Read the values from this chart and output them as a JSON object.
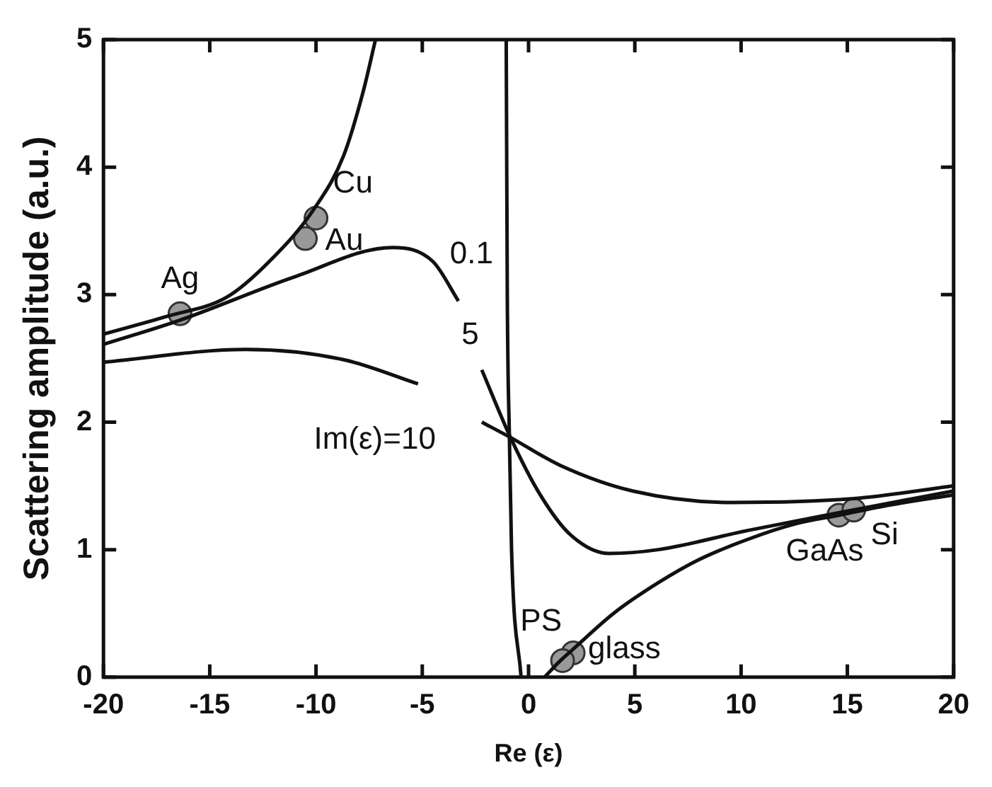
{
  "chart_data": {
    "type": "line",
    "xlabel": "Re (ε)",
    "ylabel": "Scattering amplitude (a.u.)",
    "xlim": [
      -20,
      20
    ],
    "xticks": [
      -20,
      -15,
      -10,
      -5,
      0,
      5,
      10,
      15,
      20
    ],
    "ylim": [
      0,
      5
    ],
    "yticks": [
      0,
      1,
      2,
      3,
      4,
      5
    ],
    "grid": false,
    "legend": false,
    "line_style": "solid",
    "series": [
      {
        "name": "0.1",
        "color": "#111111",
        "x": [
          -20,
          -17,
          -14.2,
          -12.2,
          -10.1,
          -8.7,
          -7.8,
          -7.2,
          -4,
          -1.05,
          -1.0,
          -0.9,
          -0.8,
          -0.35,
          0.2,
          0.75,
          1.5,
          2.1,
          4,
          6.1,
          8,
          10.3,
          12.5,
          14.6,
          17,
          20
        ],
        "values": [
          2.69,
          2.83,
          2.98,
          3.26,
          3.67,
          4.09,
          4.58,
          5,
          null,
          5,
          3,
          1.88,
          1.0,
          0,
          null,
          0,
          0.13,
          0.22,
          0.5,
          0.74,
          0.92,
          1.08,
          1.2,
          1.27,
          1.35,
          1.43
        ]
      },
      {
        "name": "5",
        "color": "#111111",
        "x": [
          -20,
          -16.4,
          -11,
          -6.4,
          -4.5,
          -3.3,
          -2.75,
          -2.2,
          -0.85,
          0.55,
          1.95,
          3.8,
          6.1,
          10.3,
          14.6,
          20
        ],
        "values": [
          2.61,
          2.8,
          3.14,
          3.37,
          3.26,
          2.95,
          null,
          2.41,
          1.88,
          1.43,
          1.12,
          0.97,
          1.0,
          1.15,
          1.29,
          1.46
        ]
      },
      {
        "name": "Im(ε)=10",
        "color": "#111111",
        "x": [
          -20,
          -13.3,
          -8.7,
          -5.2,
          -3.7,
          -2.2,
          -0.85,
          1.5,
          4.9,
          9.6,
          15.3,
          20
        ],
        "values": [
          2.47,
          2.57,
          2.49,
          2.3,
          null,
          2.0,
          1.88,
          1.66,
          1.46,
          1.37,
          1.4,
          1.5
        ]
      },
      {
        "type": "scatter",
        "marker": "circle",
        "color": "#999999",
        "x": [
          -16.4,
          -10,
          -10.5,
          2.1,
          1.6,
          14.6,
          15.3
        ],
        "values": [
          2.85,
          3.6,
          3.44,
          0.19,
          0.13,
          1.27,
          1.31
        ]
      }
    ],
    "annotations": [
      {
        "text": "Ag",
        "x": -16.4,
        "y": 2.85
      },
      {
        "text": "Cu",
        "x": -10,
        "y": 3.6
      },
      {
        "text": "Au",
        "x": -10.5,
        "y": 3.44
      },
      {
        "text": "PS",
        "x": 2.1,
        "y": 0.19
      },
      {
        "text": "glass",
        "x": 1.6,
        "y": 0.13
      },
      {
        "text": "GaAs",
        "x": 14.6,
        "y": 1.27
      },
      {
        "text": "Si",
        "x": 15.3,
        "y": 1.31
      }
    ]
  }
}
